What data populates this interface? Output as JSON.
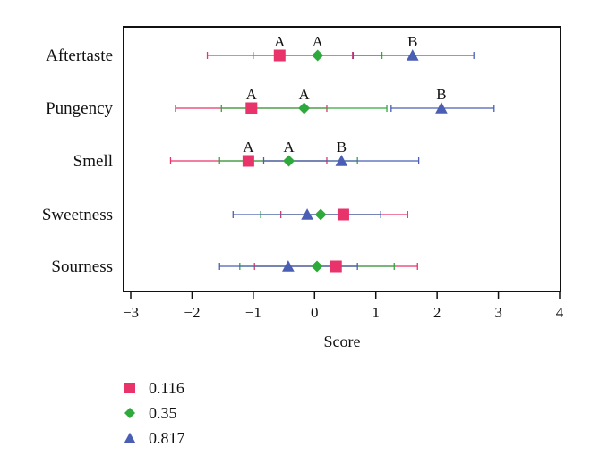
{
  "chart_data": {
    "type": "scatter",
    "subtype": "forest_plot_with_error_bars",
    "title": "",
    "xlabel": "Score",
    "ylabel": "",
    "xlim": [
      -3,
      4
    ],
    "xticks": [
      -3,
      -2,
      -1,
      0,
      1,
      2,
      3,
      4
    ],
    "xtick_labels": [
      "−3",
      "−2",
      "−1",
      "0",
      "1",
      "2",
      "3",
      "4"
    ],
    "grid": false,
    "legend_position": "bottom-left",
    "categories": [
      "Aftertaste",
      "Pungency",
      "Smell",
      "Sweetness",
      "Sourness"
    ],
    "series": [
      {
        "name": "0.116",
        "color": "#e8336b",
        "marker": "square",
        "points": [
          {
            "category": "Aftertaste",
            "mean": -0.57,
            "low": -1.75,
            "high": 0.62,
            "label": "A"
          },
          {
            "category": "Pungency",
            "mean": -1.03,
            "low": -2.27,
            "high": 0.2,
            "label": "A"
          },
          {
            "category": "Smell",
            "mean": -1.08,
            "low": -2.35,
            "high": 0.2,
            "label": "A"
          },
          {
            "category": "Sweetness",
            "mean": 0.47,
            "low": -0.55,
            "high": 1.52,
            "label": ""
          },
          {
            "category": "Sourness",
            "mean": 0.35,
            "low": -0.98,
            "high": 1.68,
            "label": ""
          }
        ]
      },
      {
        "name": "0.35",
        "color": "#2eaa3c",
        "marker": "diamond",
        "points": [
          {
            "category": "Aftertaste",
            "mean": 0.05,
            "low": -1.0,
            "high": 1.1,
            "label": "A"
          },
          {
            "category": "Pungency",
            "mean": -0.17,
            "low": -1.52,
            "high": 1.18,
            "label": "A"
          },
          {
            "category": "Smell",
            "mean": -0.42,
            "low": -1.55,
            "high": 0.7,
            "label": "A"
          },
          {
            "category": "Sweetness",
            "mean": 0.1,
            "low": -0.88,
            "high": 1.08,
            "label": ""
          },
          {
            "category": "Sourness",
            "mean": 0.04,
            "low": -1.22,
            "high": 1.3,
            "label": ""
          }
        ]
      },
      {
        "name": "0.817",
        "color": "#4a5fb3",
        "marker": "triangle",
        "points": [
          {
            "category": "Aftertaste",
            "mean": 1.6,
            "low": 0.63,
            "high": 2.6,
            "label": "B"
          },
          {
            "category": "Pungency",
            "mean": 2.07,
            "low": 1.25,
            "high": 2.93,
            "label": "B"
          },
          {
            "category": "Smell",
            "mean": 0.44,
            "low": -0.83,
            "high": 1.7,
            "label": "B"
          },
          {
            "category": "Sweetness",
            "mean": -0.12,
            "low": -1.33,
            "high": 1.08,
            "label": ""
          },
          {
            "category": "Sourness",
            "mean": -0.43,
            "low": -1.55,
            "high": 0.7,
            "label": ""
          }
        ]
      }
    ]
  }
}
